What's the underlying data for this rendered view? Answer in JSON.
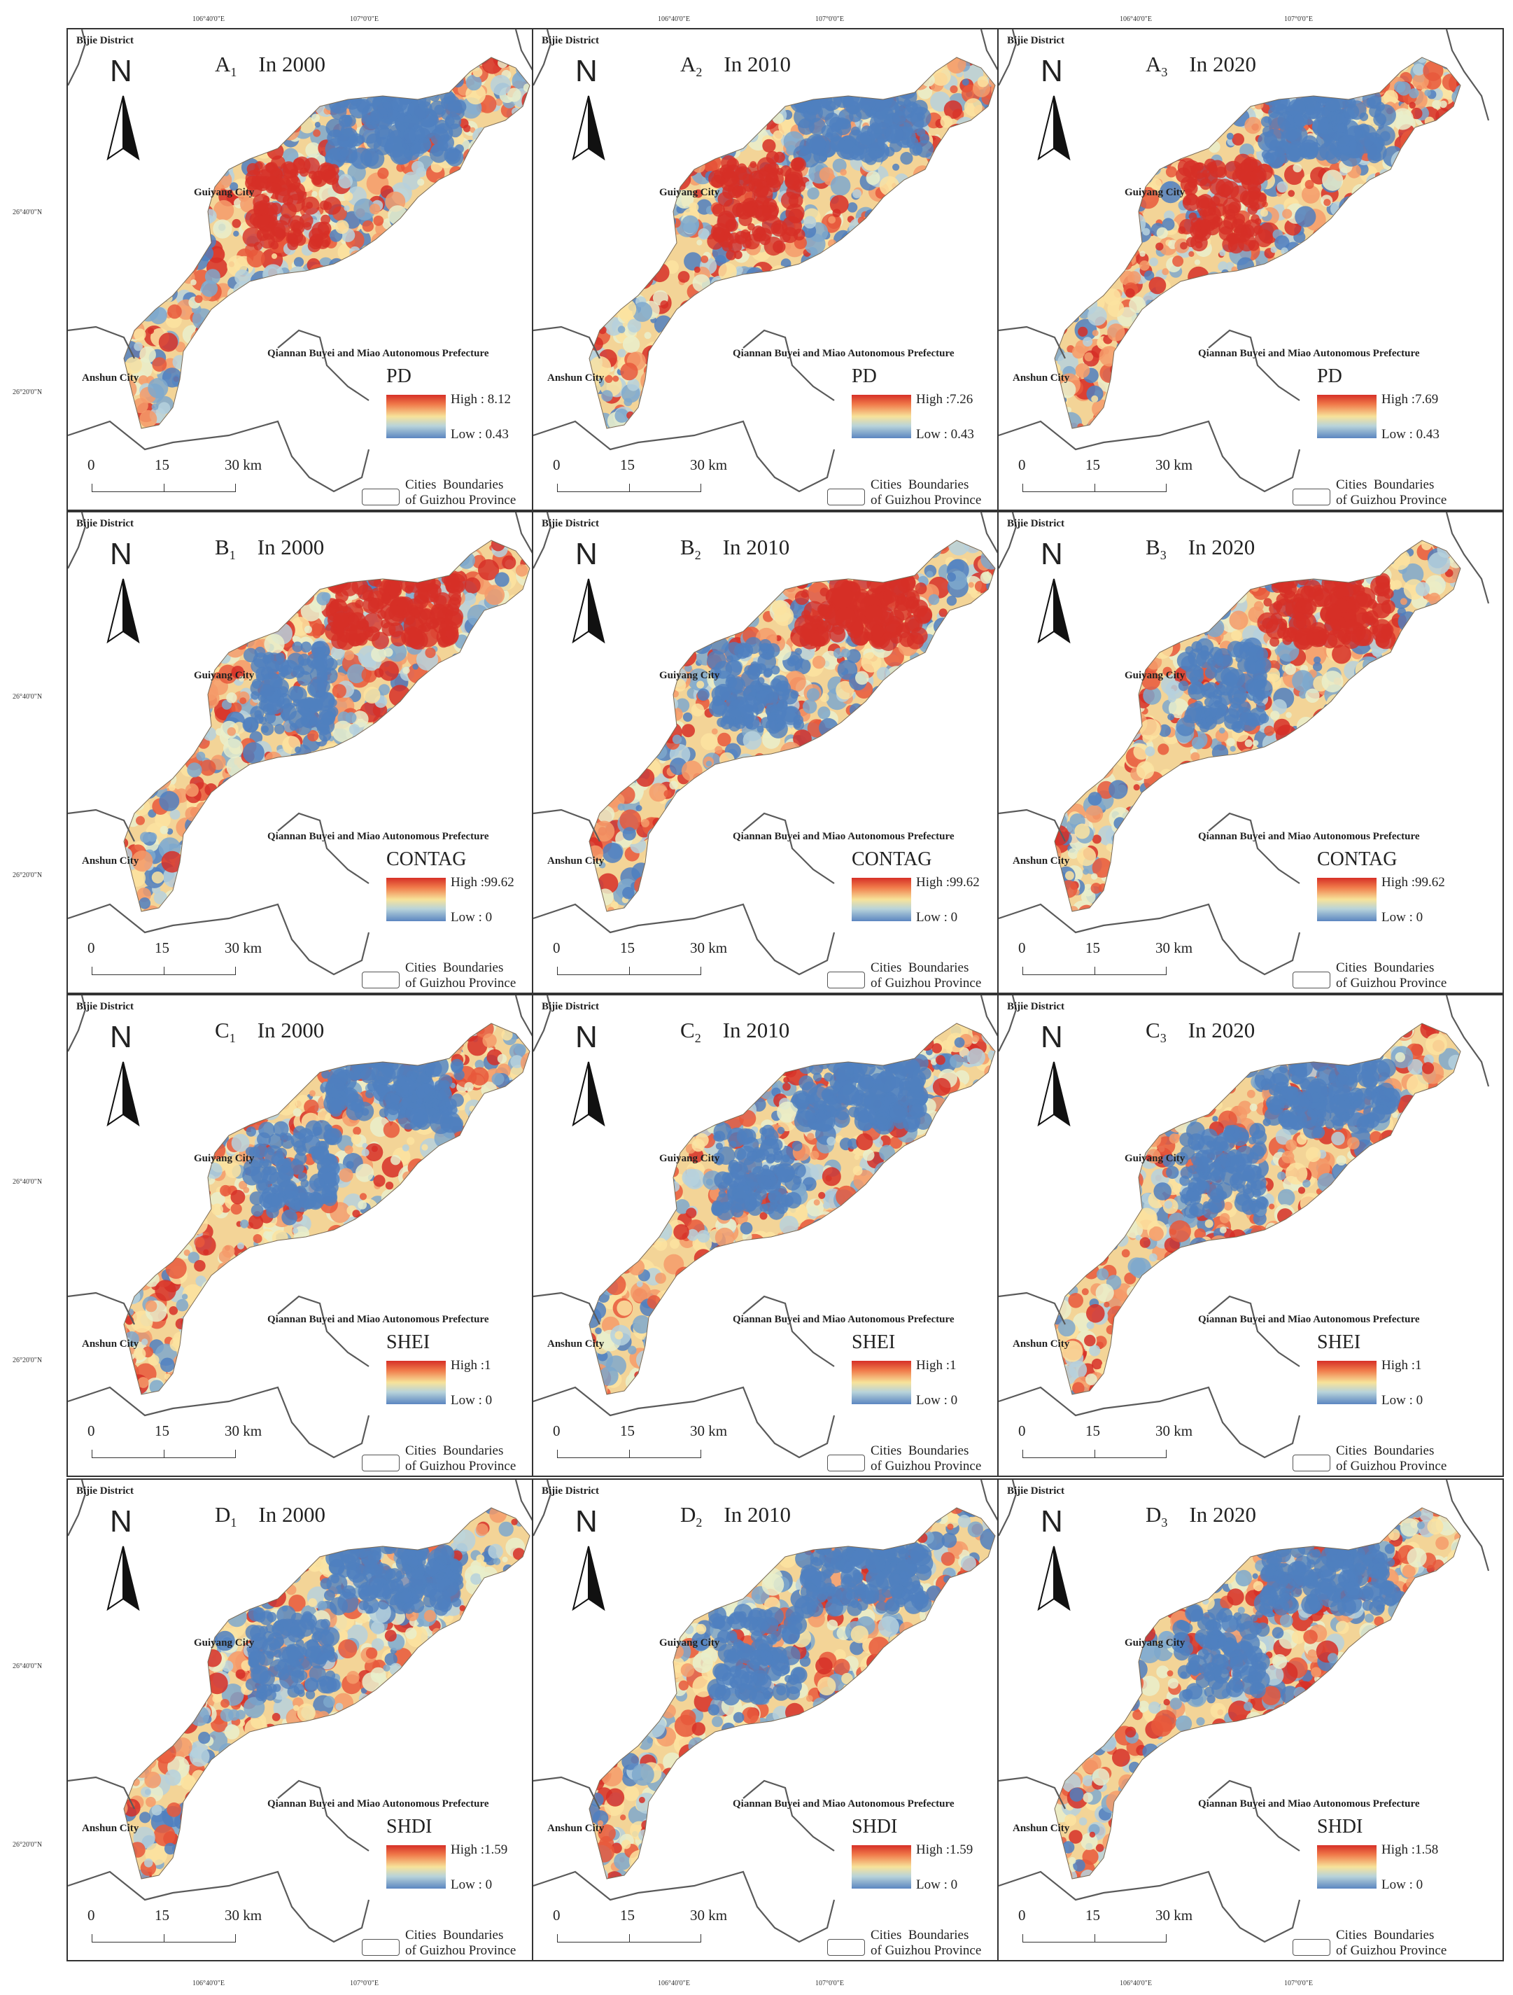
{
  "figure": {
    "top_lon_labels": [
      "106°40'0\"E",
      "107°0'0\"E"
    ],
    "bottom_lon_labels": [
      "106°40'0\"E",
      "107°0'0\"E"
    ],
    "lat_labels": [
      "26°40'0\"N",
      "26°20'0\"N"
    ],
    "map_labels": {
      "bijie": "Bijie District",
      "guiyang": "Guiyang City",
      "qiannan": "Qiannan Buyei and Miao Autonomous Prefecture",
      "anshun": "Anshun City"
    },
    "north": "N",
    "scale": {
      "t0": "0",
      "t15": "15",
      "t30": "30 km"
    },
    "boundary_legend": "Cities  Boundaries\nof Guizhou Province",
    "colors": {
      "high": "#d62f27",
      "mid": "#f7e39a",
      "low": "#4f7fbf",
      "boundary": "#5a5a5a"
    }
  },
  "panels": [
    {
      "letter": "A",
      "sub": "1",
      "year": "In 2000",
      "index": "PD",
      "high": "High : 8.12",
      "low": "Low : 0.43"
    },
    {
      "letter": "A",
      "sub": "2",
      "year": "In 2010",
      "index": "PD",
      "high": "High :7.26",
      "low": "Low : 0.43"
    },
    {
      "letter": "A",
      "sub": "3",
      "year": "In 2020",
      "index": "PD",
      "high": "High :7.69",
      "low": "Low : 0.43"
    },
    {
      "letter": "B",
      "sub": "1",
      "year": "In 2000",
      "index": "CONTAG",
      "high": "High :99.62",
      "low": "Low : 0"
    },
    {
      "letter": "B",
      "sub": "2",
      "year": "In 2010",
      "index": "CONTAG",
      "high": "High :99.62",
      "low": "Low : 0"
    },
    {
      "letter": "B",
      "sub": "3",
      "year": "In 2020",
      "index": "CONTAG",
      "high": "High :99.62",
      "low": "Low : 0"
    },
    {
      "letter": "C",
      "sub": "1",
      "year": "In 2000",
      "index": "SHEI",
      "high": "High :1",
      "low": "Low : 0"
    },
    {
      "letter": "C",
      "sub": "2",
      "year": "In 2010",
      "index": "SHEI",
      "high": "High :1",
      "low": "Low : 0"
    },
    {
      "letter": "C",
      "sub": "3",
      "year": "In 2020",
      "index": "SHEI",
      "high": "High :1",
      "low": "Low : 0"
    },
    {
      "letter": "D",
      "sub": "1",
      "year": "In 2000",
      "index": "SHDI",
      "high": "High :1.59",
      "low": "Low : 0"
    },
    {
      "letter": "D",
      "sub": "2",
      "year": "In 2010",
      "index": "SHDI",
      "high": "High :1.59",
      "low": "Low : 0"
    },
    {
      "letter": "D",
      "sub": "3",
      "year": "In 2020",
      "index": "SHDI",
      "high": "High :1.58",
      "low": "Low : 0"
    }
  ]
}
